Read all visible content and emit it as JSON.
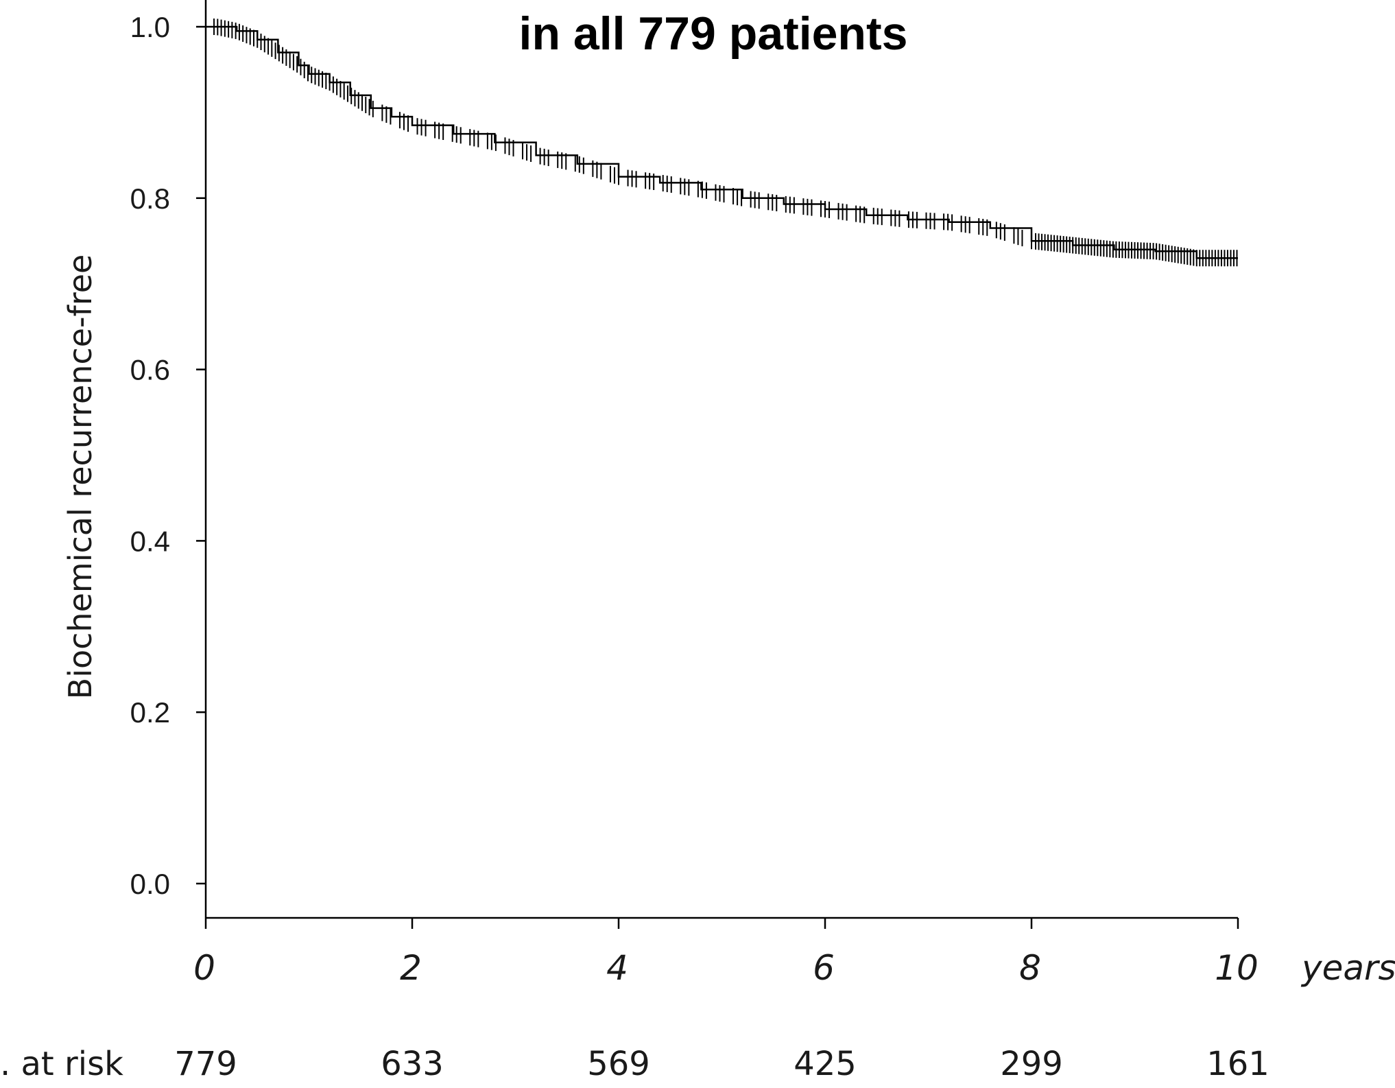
{
  "chart_data": {
    "type": "line",
    "title": "in all 779 patients",
    "xlabel": "years",
    "ylabel": "Biochemical recurrence-free",
    "xlim": [
      0,
      10
    ],
    "ylim": [
      0.0,
      1.0
    ],
    "xticks": [
      0,
      2,
      4,
      6,
      8,
      10
    ],
    "yticks": [
      0.0,
      0.2,
      0.4,
      0.6,
      0.8,
      1.0
    ],
    "ytick_labels": [
      "0.0",
      "0.2",
      "0.4",
      "0.6",
      "0.8",
      "1.0"
    ],
    "grid": false,
    "series": [
      {
        "x": [
          0.0,
          0.1,
          0.3,
          0.5,
          0.7,
          0.9,
          1.0,
          1.2,
          1.4,
          1.6,
          1.8,
          2.0,
          2.4,
          2.8,
          3.2,
          3.6,
          4.0,
          4.4,
          4.8,
          5.2,
          5.6,
          6.0,
          6.4,
          6.8,
          7.2,
          7.6,
          8.0,
          8.4,
          8.8,
          9.2,
          9.6,
          10.0
        ],
        "y": [
          1.0,
          1.0,
          0.995,
          0.985,
          0.97,
          0.955,
          0.945,
          0.935,
          0.92,
          0.905,
          0.895,
          0.885,
          0.875,
          0.865,
          0.85,
          0.84,
          0.825,
          0.818,
          0.81,
          0.8,
          0.793,
          0.787,
          0.78,
          0.775,
          0.772,
          0.765,
          0.75,
          0.745,
          0.74,
          0.738,
          0.73,
          0.73
        ],
        "censor_marks": true
      }
    ],
    "risk_table": {
      "label": ". at risk",
      "x": [
        0,
        2,
        4,
        6,
        8,
        10
      ],
      "values": [
        "779",
        "633",
        "569",
        "425",
        "299",
        "161"
      ]
    }
  }
}
